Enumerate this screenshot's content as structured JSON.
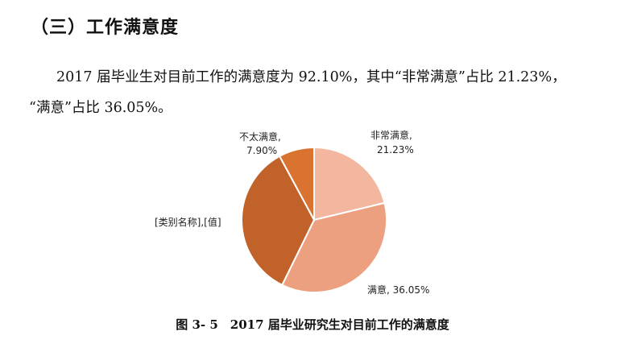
{
  "section_heading": "（三）工作满意度",
  "paragraph": {
    "line1": "2017 届毕业生对目前工作的满意度为 92.10%，其中“非常满意”占比 21.23%，",
    "line2": "“满意”占比 36.05%。"
  },
  "figure_caption": "图 3- 5　2017 届毕业研究生对目前工作的满意度",
  "chart_data": {
    "type": "pie",
    "title": "",
    "slices": [
      {
        "label": "非常满意",
        "value": 21.23,
        "value_label": "21.23%",
        "color": "#f3b79f"
      },
      {
        "label": "满意",
        "value": 36.05,
        "value_label": "36.05%",
        "color": "#eda080"
      },
      {
        "label": "[类别名称]",
        "value": 34.82,
        "value_label": "[值]",
        "color": "#c0622a"
      },
      {
        "label": "不太满意",
        "value": 7.9,
        "value_label": "7.90%",
        "color": "#d9732f"
      }
    ],
    "data_labels": {
      "very_satisfied_line1": "非常满意,",
      "very_satisfied_line2": "21.23%",
      "satisfied": "满意, 36.05%",
      "placeholder": "[类别名称],[值]",
      "not_very_line1": "不太满意,",
      "not_very_line2": "7.90%"
    }
  }
}
